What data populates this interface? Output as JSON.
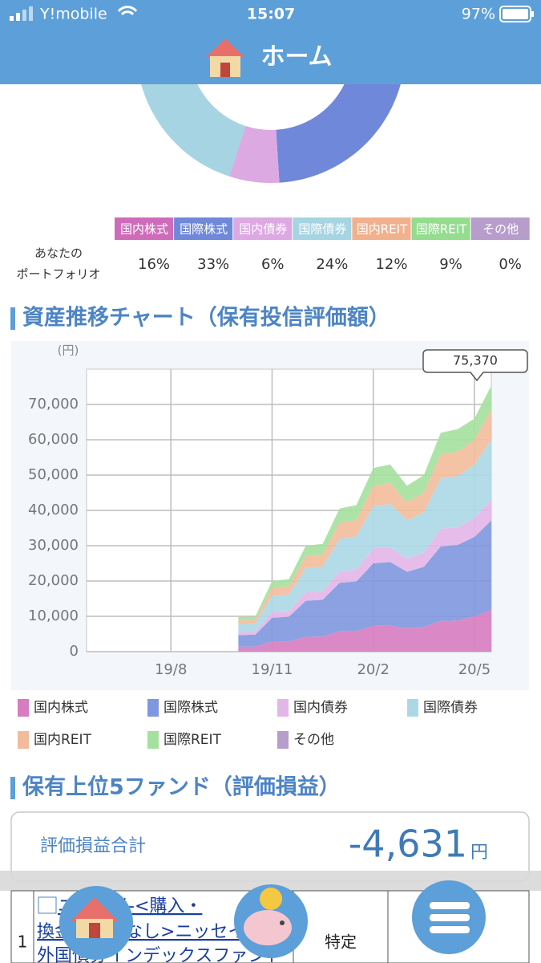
{
  "status_bar": {
    "carrier": "Y!mobile",
    "time": "15:07",
    "battery": "97%"
  },
  "header": {
    "title": "ホーム"
  },
  "chart_data": [
    {
      "type": "donut",
      "categories": [
        "国内株式",
        "国際株式",
        "国内債券",
        "国際債券",
        "国内REIT",
        "国際REIT",
        "その他"
      ],
      "values": [
        16,
        33,
        6,
        24,
        12,
        9,
        0
      ],
      "value_labels": [
        "16%",
        "33%",
        "6%",
        "24%",
        "12%",
        "9%",
        "0%"
      ],
      "colors": [
        "#cf6cba",
        "#7088da",
        "#dca9e2",
        "#a6d4e2",
        "#f1b18e",
        "#95dc8f",
        "#b79dcb"
      ],
      "row_label": [
        "あなたの",
        "ポートフォリオ"
      ]
    },
    {
      "type": "area",
      "stacked": true,
      "title": "資産推移チャート（保有投信評価額）",
      "y_unit": "(円)",
      "categories": [
        null,
        null,
        null,
        null,
        null,
        "19/8",
        null,
        null,
        null,
        null,
        null,
        "19/11",
        null,
        null,
        null,
        null,
        null,
        "20/2",
        null,
        null,
        null,
        null,
        null,
        "20/5",
        null
      ],
      "series": [
        {
          "name": "国内株式",
          "color": "#d67cc0",
          "values": [
            null,
            null,
            null,
            null,
            null,
            null,
            null,
            null,
            null,
            1400,
            1400,
            2800,
            2900,
            4200,
            4300,
            5700,
            5800,
            7300,
            7400,
            6600,
            7000,
            8700,
            8800,
            10000,
            11800
          ]
        },
        {
          "name": "国際株式",
          "color": "#7f97de",
          "values": [
            null,
            null,
            null,
            null,
            null,
            null,
            null,
            null,
            null,
            3300,
            3400,
            6800,
            7000,
            10200,
            10400,
            13800,
            14100,
            17700,
            18000,
            16000,
            17000,
            21100,
            21400,
            22500,
            25400
          ]
        },
        {
          "name": "国内債券",
          "color": "#e3b6e8",
          "values": [
            null,
            null,
            null,
            null,
            null,
            null,
            null,
            null,
            null,
            800,
            800,
            1600,
            1600,
            2400,
            2400,
            3200,
            3300,
            4200,
            4200,
            3800,
            4000,
            5000,
            5000,
            5300,
            5800
          ]
        },
        {
          "name": "国際債券",
          "color": "#acd8e5",
          "values": [
            null,
            null,
            null,
            null,
            null,
            null,
            null,
            null,
            null,
            2300,
            2300,
            4600,
            4700,
            6900,
            7000,
            9300,
            9500,
            12000,
            12200,
            10800,
            11500,
            14300,
            14500,
            15200,
            17000
          ]
        },
        {
          "name": "国内REIT",
          "color": "#f3bb9b",
          "values": [
            null,
            null,
            null,
            null,
            null,
            null,
            null,
            null,
            null,
            1100,
            1100,
            2200,
            2300,
            3300,
            3400,
            4500,
            4600,
            5700,
            5900,
            5200,
            5500,
            6800,
            6900,
            7000,
            8500
          ]
        },
        {
          "name": "国際REIT",
          "color": "#a5e09e",
          "values": [
            null,
            null,
            null,
            null,
            null,
            null,
            null,
            null,
            null,
            900,
            900,
            2000,
            2000,
            3000,
            3000,
            4000,
            4200,
            5100,
            5300,
            4600,
            5000,
            6100,
            6400,
            6000,
            6870
          ]
        },
        {
          "name": "その他",
          "color": "#b79dcb",
          "values": [
            null,
            null,
            null,
            null,
            null,
            null,
            null,
            null,
            null,
            0,
            0,
            0,
            0,
            0,
            0,
            0,
            0,
            0,
            0,
            0,
            0,
            0,
            0,
            0,
            0
          ]
        }
      ],
      "ylim": [
        0,
        80000
      ],
      "yticks": [
        0,
        {
          "value": 10000,
          "label": "10,000"
        },
        {
          "value": 20000,
          "label": "20,000"
        },
        {
          "value": 30000,
          "label": "30,000"
        },
        {
          "value": 40000,
          "label": "40,000"
        },
        {
          "value": 50000,
          "label": "50,000"
        },
        {
          "value": 60000,
          "label": "60,000"
        },
        {
          "value": 70000,
          "label": "70,000"
        }
      ],
      "grid": true,
      "callout": "75,370"
    }
  ],
  "funds": {
    "title": "保有上位5ファンド（評価損益）",
    "total_label": "評価損益合計",
    "total_value": "-4,631",
    "unit": "円",
    "rows": [
      {
        "rank": "1",
        "name_lines": [
          "ニッセイ-<購入・",
          "換金手数料なし>ニッセイ",
          "外国債券インデックスファンド"
        ],
        "account": "特定"
      }
    ]
  }
}
